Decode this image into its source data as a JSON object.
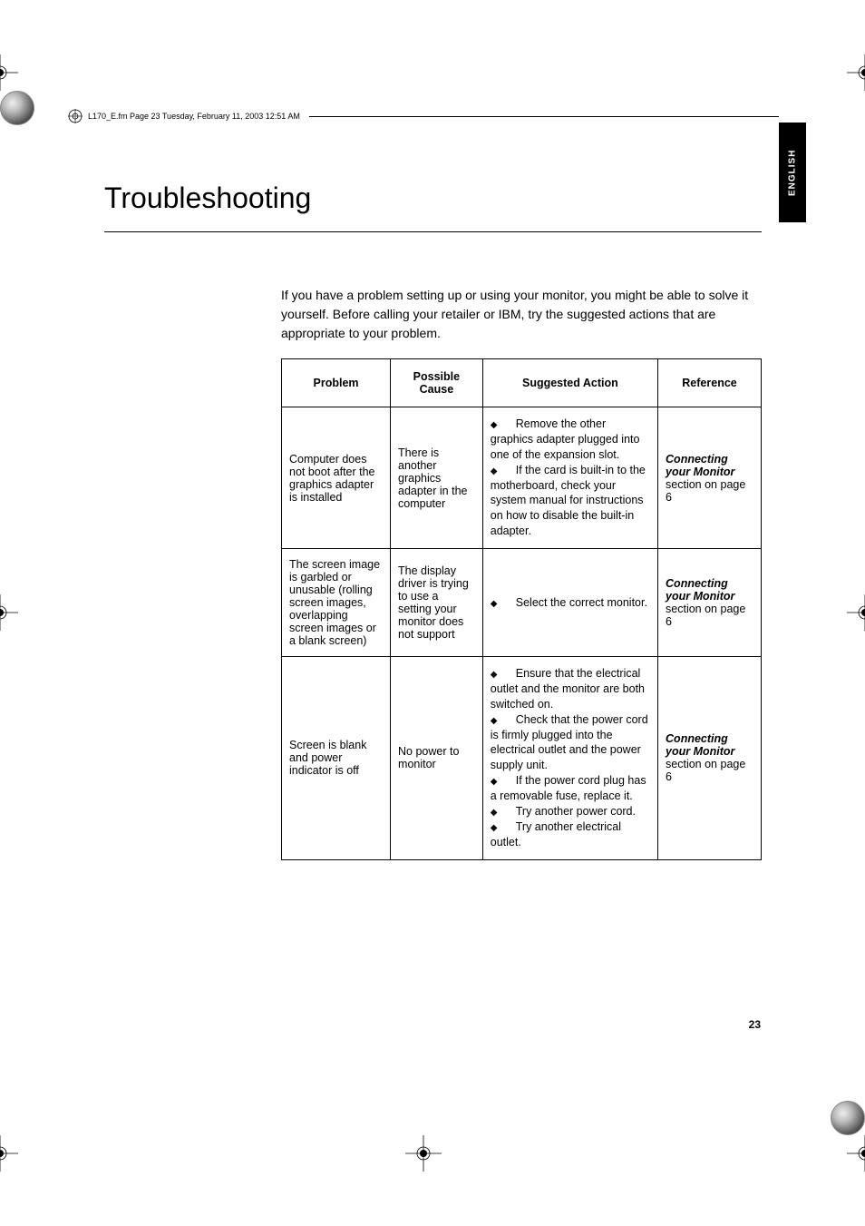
{
  "meta": {
    "header_text": "L170_E.fm  Page 23  Tuesday, February 11, 2003  12:51 AM",
    "side_tab": "ENGLISH",
    "page_number": "23"
  },
  "title": "Troubleshooting",
  "intro": "If you have a problem setting up or using your monitor, you might be able to solve it yourself. Before calling your retailer or IBM, try the suggested actions that are appropriate to your problem.",
  "headers": {
    "problem": "Problem",
    "cause": "Possible Cause",
    "action": "Suggested Action",
    "ref": "Reference"
  },
  "rows": [
    {
      "problem": "Computer does not boot after the graphics adapter is installed",
      "cause": "There is another graphics adapter in the computer",
      "actions": [
        "Remove the other graphics adapter plugged into one of the expansion slot.",
        "If the card is built-in to the motherboard, check your system manual for instructions on how to disable the built-in adapter."
      ],
      "ref_title": "Connecting your Monitor",
      "ref_text": "section on page 6"
    },
    {
      "problem": "The screen image is garbled or unusable (rolling screen images, overlapping screen images or a blank screen)",
      "cause": "The display driver is trying to use a setting your monitor does not support",
      "actions": [
        "Select the correct monitor."
      ],
      "ref_title": "Connecting your Monitor",
      "ref_text": "section on page 6"
    },
    {
      "problem": "Screen is blank and power indicator is off",
      "cause": "No power to monitor",
      "actions": [
        "Ensure that the electrical outlet and the monitor are both switched on.",
        "Check that the power cord is firmly plugged into the electrical outlet and the power supply unit.",
        "If the power cord plug has a removable fuse, replace it.",
        "Try another power cord.",
        "Try another electrical outlet."
      ],
      "ref_title": "Connecting your Monitor",
      "ref_text": "section on page 6"
    }
  ],
  "style": {
    "colors": {
      "page_bg": "#ffffff",
      "text": "#000000",
      "border": "#000000",
      "tab_bg": "#000000",
      "tab_text": "#ffffff"
    },
    "fonts": {
      "title_size_pt": 24,
      "body_size_pt": 11,
      "table_size_pt": 9
    }
  }
}
